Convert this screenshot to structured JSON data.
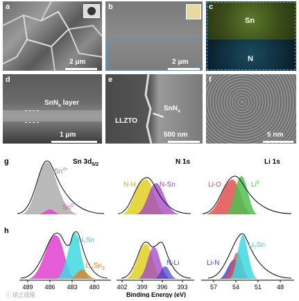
{
  "panels": {
    "a": {
      "label": "a",
      "scale": "2 μm"
    },
    "b": {
      "label": "b",
      "scale": "2 μm"
    },
    "c": {
      "label": "c",
      "top_element": "Sn",
      "bottom_element": "N",
      "top_color": "#4a6a1e",
      "bottom_color": "#0e3a4a"
    },
    "d": {
      "label": "d",
      "layer": "SnN",
      "layer_sub": "x",
      "layer_suffix": " layer",
      "scale": "1 μm"
    },
    "e": {
      "label": "e",
      "left_text": "LLZTO",
      "right_text": "SnN",
      "right_sub": "x",
      "scale": "500 nm"
    },
    "f": {
      "label": "f",
      "scale": "5 nm"
    }
  },
  "xps": {
    "g_label": "g",
    "h_label": "h",
    "col_titles": {
      "sn_main": "Sn 3d",
      "sn_sub": "5/2",
      "n": "N 1s",
      "li": "Li 1s"
    },
    "g_sn": {
      "a": "Sn",
      "a_sup": "4+",
      "b": "Sn",
      "b_sup": "0"
    },
    "g_n": {
      "a": "N-H",
      "b": "N-Sn"
    },
    "g_li": {
      "a": "Li-O",
      "b": "Li",
      "b_sup": "0"
    },
    "h_sn": {
      "a": "Li",
      "a_sub": "7",
      "a_tail": "Sn",
      "b": "Li",
      "b_sub": "2",
      "b_mid": "Sn",
      "b_sub2": "3"
    },
    "h_n": {
      "a": "N-Li"
    },
    "h_li": {
      "a": "Li-N",
      "b": "Li",
      "b_sub": "7",
      "b_tail": "Sn"
    },
    "sn_ticks": [
      "489",
      "486",
      "483",
      "480"
    ],
    "n_ticks": [
      "402",
      "399",
      "396",
      "393"
    ],
    "li_ticks": [
      "57",
      "54",
      "51",
      "48"
    ],
    "xlabel": "Binding Energy (eV)",
    "colors": {
      "gray_peak": "#a8a8a8",
      "magenta": "#e040d0",
      "cyan": "#40d8e0",
      "orange": "#e08020",
      "yellow": "#e0d020",
      "purple": "#a040c8",
      "red": "#e05050",
      "green": "#50c050",
      "blue": "#4040c0"
    }
  },
  "watermark": "ⓒ 研之成理"
}
